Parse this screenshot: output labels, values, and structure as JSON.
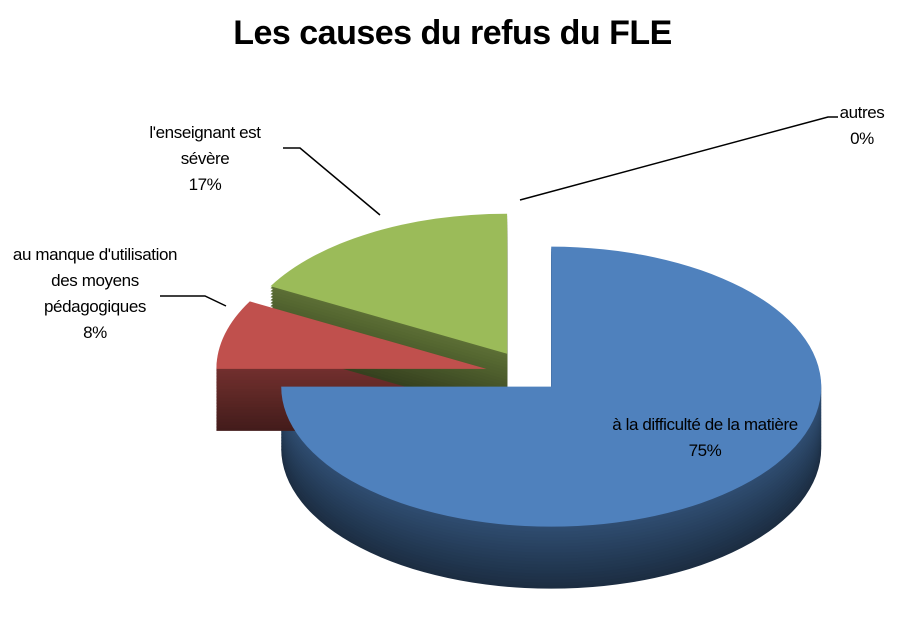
{
  "chart_data": {
    "type": "pie",
    "title": "Les causes du refus du FLE",
    "categories": [
      "à la difficulté de la matière",
      "au manque d'utilisation des moyens pédagogiques",
      "l'enseignant est sévère",
      "autres"
    ],
    "values": [
      75,
      8,
      17,
      0
    ],
    "value_labels": [
      "75%",
      "8%",
      "17%",
      "0%"
    ],
    "colors": [
      "#4f81bd",
      "#c0504d",
      "#9bbb59",
      "#8064a2"
    ],
    "three_d": true,
    "exploded": true
  }
}
